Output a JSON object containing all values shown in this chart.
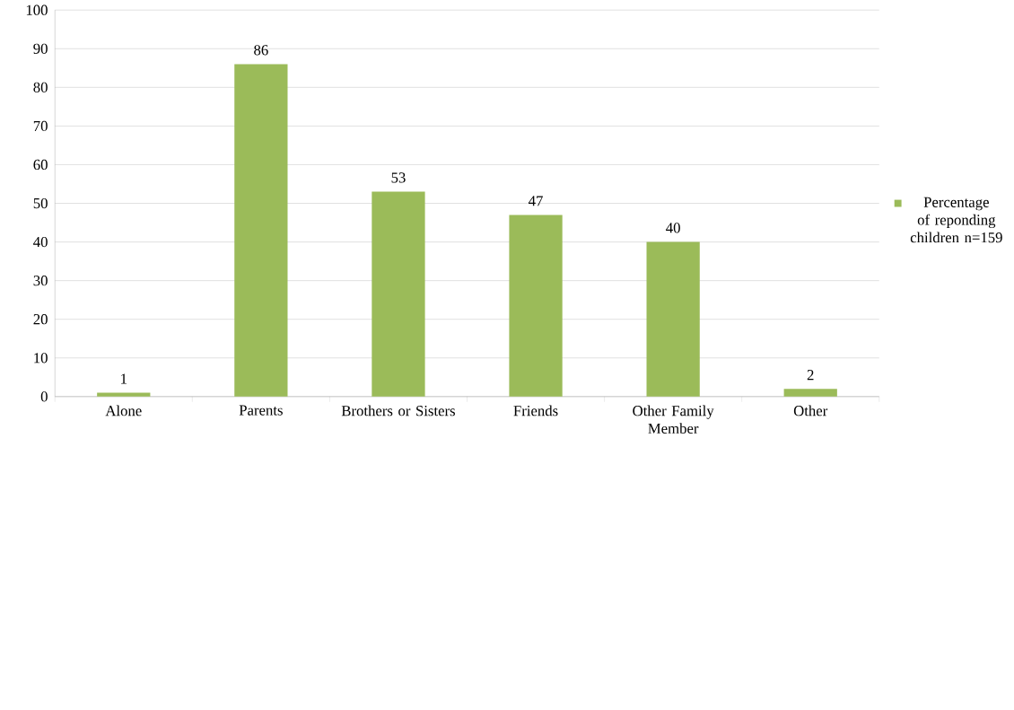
{
  "chart_data": {
    "type": "bar",
    "categories": [
      "Alone",
      "Parents",
      "Brothers or Sisters",
      "Friends",
      "Other Family Member",
      "Other"
    ],
    "series": [
      {
        "name": "Percentage of reponding children n=159",
        "color": "#9bbb59",
        "values": [
          1,
          86,
          53,
          47,
          40,
          2
        ]
      }
    ],
    "ylim": [
      0,
      100
    ],
    "yticks": [
      0,
      10,
      20,
      30,
      40,
      50,
      60,
      70,
      80,
      90,
      100
    ],
    "grid": "y",
    "legend": "right",
    "data_labels": true
  }
}
